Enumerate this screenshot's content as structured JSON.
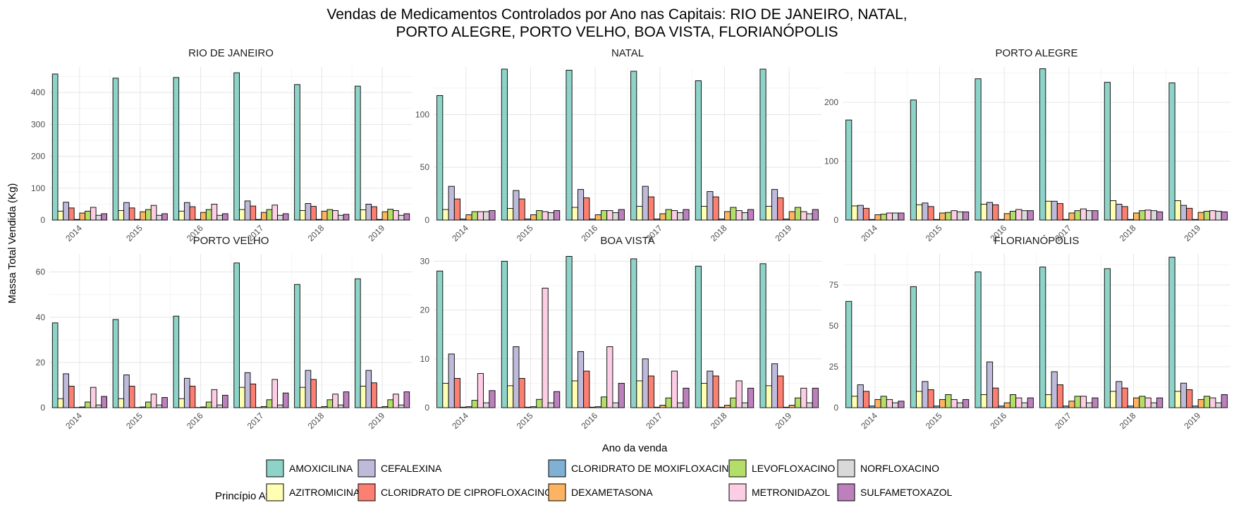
{
  "chart_data": {
    "type": "bar",
    "title_lines": [
      "Vendas de Medicamentos Controlados por Ano nas Capitais: RIO DE JANEIRO, NATAL,",
      "PORTO ALEGRE, PORTO VELHO, BOA VISTA, FLORIANÓPOLIS"
    ],
    "xlabel": "Ano da venda",
    "ylabel": "Massa Total Vendida (Kg)",
    "legend_title": "Princípio Ativo",
    "legend_position": "bottom",
    "grid": true,
    "categories": [
      "2014",
      "2015",
      "2016",
      "2017",
      "2018",
      "2019"
    ],
    "series": [
      {
        "name": "AMOXICILINA",
        "color": "#8DD3C7"
      },
      {
        "name": "AZITROMICINA",
        "color": "#FFFFB3"
      },
      {
        "name": "CEFALEXINA",
        "color": "#BEBADA"
      },
      {
        "name": "CLORIDRATO DE CIPROFLOXACINO",
        "color": "#FB8072"
      },
      {
        "name": "CLORIDRATO DE MOXIFLOXACINO",
        "color": "#80B1D3"
      },
      {
        "name": "DEXAMETASONA",
        "color": "#FDB462"
      },
      {
        "name": "LEVOFLOXACINO",
        "color": "#B3DE69"
      },
      {
        "name": "METRONIDAZOL",
        "color": "#FCCDE5"
      },
      {
        "name": "NORFLOXACINO",
        "color": "#D9D9D9"
      },
      {
        "name": "SULFAMETOXAZOL",
        "color": "#BC80BD"
      }
    ],
    "panels": [
      {
        "name": "RIO DE JANEIRO",
        "ylim": [
          0,
          480
        ],
        "yticks": [
          0,
          100,
          200,
          300,
          400
        ],
        "values": [
          [
            458,
            445,
            447,
            462,
            425,
            420
          ],
          [
            28,
            30,
            28,
            33,
            30,
            32
          ],
          [
            56,
            55,
            55,
            60,
            52,
            50
          ],
          [
            38,
            38,
            42,
            44,
            43,
            42
          ],
          [
            2,
            2,
            2,
            2,
            2,
            2
          ],
          [
            22,
            26,
            24,
            24,
            28,
            26
          ],
          [
            28,
            33,
            33,
            33,
            33,
            34
          ],
          [
            40,
            46,
            50,
            47,
            30,
            30
          ],
          [
            15,
            15,
            15,
            15,
            15,
            15
          ],
          [
            20,
            20,
            20,
            20,
            18,
            20
          ]
        ]
      },
      {
        "name": "NATAL",
        "ylim": [
          0,
          145
        ],
        "yticks": [
          0,
          50,
          100
        ],
        "values": [
          [
            118,
            143,
            142,
            141,
            132,
            143
          ],
          [
            10,
            11,
            12,
            13,
            13,
            13
          ],
          [
            32,
            28,
            29,
            32,
            27,
            29
          ],
          [
            20,
            20,
            21,
            22,
            22,
            21
          ],
          [
            1,
            1,
            1,
            1,
            1,
            1
          ],
          [
            5,
            5,
            5,
            6,
            8,
            8
          ],
          [
            8,
            9,
            9,
            10,
            12,
            12
          ],
          [
            8,
            8,
            9,
            9,
            9,
            8
          ],
          [
            8,
            7,
            7,
            7,
            7,
            6
          ],
          [
            9,
            9,
            10,
            10,
            10,
            10
          ]
        ]
      },
      {
        "name": "PORTO ALEGRE",
        "ylim": [
          0,
          260
        ],
        "yticks": [
          0,
          100,
          200
        ],
        "values": [
          [
            170,
            204,
            240,
            257,
            234,
            233
          ],
          [
            24,
            26,
            27,
            32,
            33,
            33
          ],
          [
            25,
            29,
            30,
            32,
            27,
            25
          ],
          [
            20,
            23,
            26,
            28,
            23,
            20
          ],
          [
            1,
            1,
            1,
            1,
            1,
            1
          ],
          [
            9,
            12,
            11,
            12,
            12,
            13
          ],
          [
            10,
            13,
            15,
            16,
            16,
            15
          ],
          [
            12,
            16,
            18,
            19,
            17,
            16
          ],
          [
            12,
            14,
            16,
            16,
            16,
            15
          ],
          [
            12,
            14,
            16,
            16,
            14,
            14
          ]
        ]
      },
      {
        "name": "PORTO VELHO",
        "ylim": [
          0,
          68
        ],
        "yticks": [
          0,
          20,
          40,
          60
        ],
        "values": [
          [
            37.5,
            39,
            40.5,
            64,
            54.5,
            57
          ],
          [
            4,
            4,
            4,
            9,
            9,
            9.5
          ],
          [
            15,
            14.5,
            13,
            15.5,
            16.5,
            16.5
          ],
          [
            9.5,
            9.5,
            9.5,
            10.5,
            12.5,
            11
          ],
          [
            0.1,
            0.1,
            0.1,
            0.1,
            0.1,
            0.1
          ],
          [
            0.3,
            0.3,
            0.3,
            0.5,
            0.5,
            0.5
          ],
          [
            2.5,
            2.5,
            2.5,
            3.5,
            3.5,
            3.5
          ],
          [
            9,
            6,
            8,
            12.5,
            6,
            6
          ],
          [
            1.2,
            1.2,
            1.2,
            1.2,
            1.2,
            1.2
          ],
          [
            5,
            4.5,
            5.5,
            6.5,
            7,
            7
          ]
        ]
      },
      {
        "name": "BOA VISTA",
        "ylim": [
          0,
          31.5
        ],
        "yticks": [
          0,
          10,
          20,
          30
        ],
        "values": [
          [
            28,
            30,
            31,
            30.5,
            29,
            29.5
          ],
          [
            5,
            4.5,
            5.5,
            5.5,
            5,
            4.5
          ],
          [
            11,
            12.5,
            11.5,
            10,
            7.5,
            9
          ],
          [
            6,
            6,
            7.5,
            6.5,
            6.5,
            6.5
          ],
          [
            0.1,
            0.1,
            0.1,
            0.1,
            0.1,
            0.1
          ],
          [
            0.2,
            0.2,
            0.2,
            0.5,
            0.5,
            0.5
          ],
          [
            1.5,
            1.7,
            2.2,
            2,
            2,
            2
          ],
          [
            7,
            24.5,
            12.5,
            7.5,
            5.5,
            4
          ],
          [
            1,
            1,
            1,
            1,
            1,
            1
          ],
          [
            3.5,
            3.3,
            5,
            4,
            4,
            4
          ]
        ]
      },
      {
        "name": "FLORIANÓPOLIS",
        "ylim": [
          0,
          94
        ],
        "yticks": [
          0,
          25,
          50,
          75
        ],
        "values": [
          [
            65,
            74,
            83,
            86,
            85,
            92
          ],
          [
            7,
            10,
            8,
            8,
            10,
            10
          ],
          [
            14,
            16,
            28,
            22,
            16,
            15
          ],
          [
            10,
            11,
            12,
            14,
            12,
            11
          ],
          [
            1,
            1,
            1,
            1,
            1,
            1
          ],
          [
            5,
            5,
            3,
            4,
            6,
            5
          ],
          [
            7,
            8,
            8,
            7,
            7,
            7
          ],
          [
            5,
            5,
            6,
            7,
            6,
            6
          ],
          [
            3,
            3,
            3,
            3,
            3,
            3
          ],
          [
            4,
            5,
            6,
            6,
            6,
            8
          ]
        ]
      }
    ]
  }
}
